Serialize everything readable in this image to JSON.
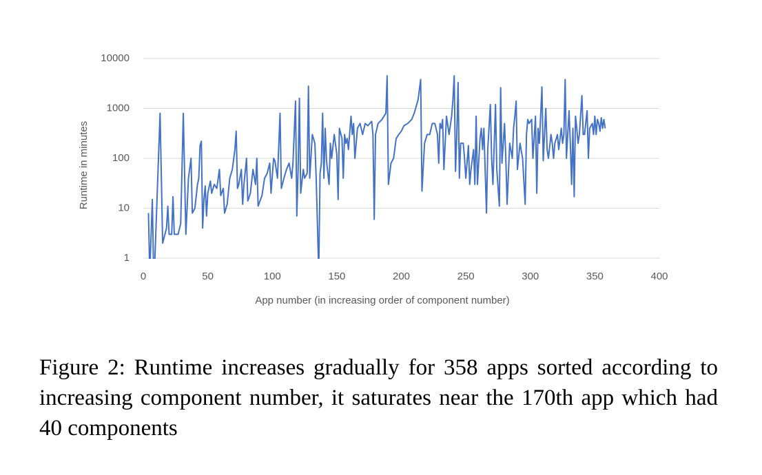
{
  "chart_data": {
    "type": "line",
    "x_label": "App number (in increasing order of component number)",
    "y_label": "Runtime in minutes",
    "log_y": true,
    "grid": true,
    "xlim": [
      0,
      400
    ],
    "xticks": [
      0,
      50,
      100,
      150,
      200,
      250,
      300,
      350,
      400
    ],
    "ylim": [
      1,
      10000
    ],
    "yticks": [
      1,
      10,
      100,
      1000,
      10000
    ],
    "caption": "Figure 2: Runtime increases gradually for 358 apps sorted according to increasing component number, it saturates near the 170th app which had 40 components",
    "x": [
      4,
      5,
      7,
      8,
      9,
      13,
      15,
      18,
      19,
      20,
      22,
      23,
      24,
      27,
      29,
      31,
      33,
      35,
      37,
      38,
      40,
      42,
      43,
      44,
      45,
      46,
      47,
      48,
      49,
      50,
      52,
      53,
      55,
      57,
      59,
      60,
      62,
      63,
      65,
      67,
      69,
      71,
      72,
      73,
      74,
      76,
      77,
      78,
      80,
      81,
      83,
      85,
      87,
      88,
      89,
      90,
      92,
      94,
      96,
      98,
      99,
      101,
      102,
      104,
      106,
      107,
      109,
      111,
      113,
      115,
      116,
      118,
      119,
      120,
      121,
      122,
      124,
      125,
      127,
      128,
      129,
      131,
      133,
      134,
      136,
      137,
      138,
      139,
      140,
      141,
      142,
      144,
      145,
      146,
      148,
      150,
      151,
      152,
      154,
      155,
      156,
      157,
      158,
      159,
      161,
      162,
      163,
      164,
      166,
      168,
      170,
      172,
      174,
      177,
      178,
      179,
      180,
      182,
      185,
      188,
      189,
      190,
      192,
      194,
      196,
      198,
      200,
      202,
      205,
      208,
      210,
      213,
      215,
      216,
      218,
      220,
      222,
      224,
      226,
      228,
      229,
      230,
      231,
      232,
      233,
      235,
      237,
      239,
      240,
      241,
      242,
      243,
      244,
      245,
      246,
      248,
      249,
      250,
      252,
      253,
      254,
      256,
      257,
      258,
      259,
      261,
      262,
      263,
      264,
      266,
      267,
      269,
      270,
      271,
      273,
      274,
      276,
      277,
      278,
      280,
      281,
      282,
      284,
      286,
      287,
      288,
      289,
      290,
      292,
      294,
      296,
      297,
      298,
      299,
      301,
      302,
      304,
      305,
      306,
      307,
      309,
      310,
      312,
      313,
      314,
      316,
      317,
      318,
      319,
      321,
      322,
      324,
      325,
      326,
      327,
      328,
      330,
      331,
      332,
      333,
      334,
      335,
      336,
      337,
      338,
      340,
      341,
      342,
      344,
      345,
      346,
      348,
      349,
      350,
      351,
      352,
      353,
      354,
      355,
      356,
      357,
      358
    ],
    "series": [
      {
        "name": "Runtime",
        "color": "#4472c4",
        "values": [
          8,
          0.5,
          15,
          0.5,
          1,
          800,
          2,
          4,
          11,
          3,
          3,
          17,
          3,
          3,
          5,
          800,
          3,
          40,
          100,
          8,
          10,
          30,
          40,
          180,
          220,
          4,
          15,
          28,
          7,
          20,
          35,
          20,
          30,
          25,
          60,
          18,
          25,
          8,
          12,
          40,
          60,
          150,
          350,
          25,
          30,
          60,
          12,
          30,
          100,
          14,
          20,
          60,
          30,
          100,
          11,
          13,
          18,
          40,
          50,
          80,
          20,
          100,
          90,
          40,
          800,
          25,
          40,
          60,
          80,
          40,
          80,
          1400,
          7,
          60,
          1600,
          20,
          60,
          40,
          50,
          2800,
          40,
          300,
          200,
          40,
          0.5,
          50,
          80,
          800,
          40,
          400,
          90,
          30,
          200,
          100,
          300,
          120,
          15,
          400,
          250,
          40,
          300,
          200,
          250,
          150,
          700,
          300,
          500,
          100,
          400,
          500,
          300,
          500,
          450,
          550,
          300,
          6,
          300,
          500,
          600,
          800,
          4500,
          30,
          80,
          100,
          250,
          300,
          350,
          450,
          500,
          600,
          800,
          1500,
          3800,
          22,
          200,
          300,
          300,
          500,
          500,
          300,
          80,
          500,
          400,
          600,
          60,
          700,
          300,
          700,
          1500,
          4500,
          55,
          300,
          3300,
          40,
          200,
          200,
          100,
          40,
          180,
          30,
          60,
          150,
          30,
          700,
          30,
          250,
          400,
          150,
          400,
          8,
          150,
          1200,
          100,
          30,
          1200,
          60,
          11,
          2600,
          80,
          500,
          100,
          12,
          200,
          100,
          400,
          700,
          1400,
          60,
          200,
          100,
          12,
          300,
          600,
          500,
          600,
          100,
          700,
          20,
          400,
          200,
          2700,
          90,
          1000,
          150,
          100,
          300,
          200,
          100,
          200,
          300,
          150,
          400,
          200,
          300,
          3800,
          100,
          900,
          200,
          30,
          400,
          17,
          700,
          400,
          200,
          300,
          1800,
          300,
          300,
          900,
          100,
          400,
          500,
          300,
          700,
          300,
          600,
          500,
          350,
          650,
          400,
          600,
          400
        ]
      }
    ]
  }
}
